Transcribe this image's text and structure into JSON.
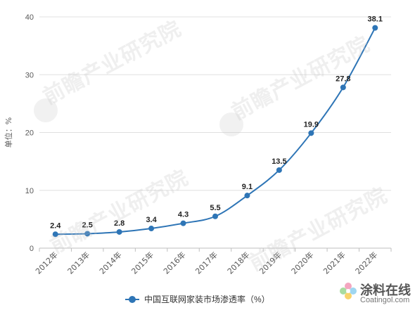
{
  "chart_data": {
    "type": "line",
    "categories": [
      "2012年",
      "2013年",
      "2014年",
      "2015年",
      "2016年",
      "2017年",
      "2018年",
      "2019年",
      "2020年",
      "2021年",
      "2022年"
    ],
    "series": [
      {
        "name": "中国互联网家装市场渗透率（%）",
        "values": [
          2.4,
          2.5,
          2.8,
          3.4,
          4.3,
          5.5,
          9.1,
          13.5,
          19.9,
          27.8,
          38.1
        ],
        "labels": [
          "2.4",
          "2.5",
          "2.8",
          "3.4",
          "4.3",
          "5.5",
          "9.1",
          "13.5",
          "19.9",
          "27.8",
          "38.1"
        ]
      }
    ],
    "ylabel": "单位：%",
    "ylim": [
      0,
      40
    ],
    "yticks": [
      0,
      10,
      20,
      30,
      40
    ],
    "grid": true,
    "legend": "bottom",
    "colors": {
      "line": "#2e75b6",
      "grid": "#e0e0e0",
      "axis_text": "#595959",
      "label_text": "#222222"
    }
  },
  "watermark": {
    "text": "前瞻产业研究院"
  },
  "logo": {
    "cn": "涂料在线",
    "en": "Coatingol.com"
  }
}
